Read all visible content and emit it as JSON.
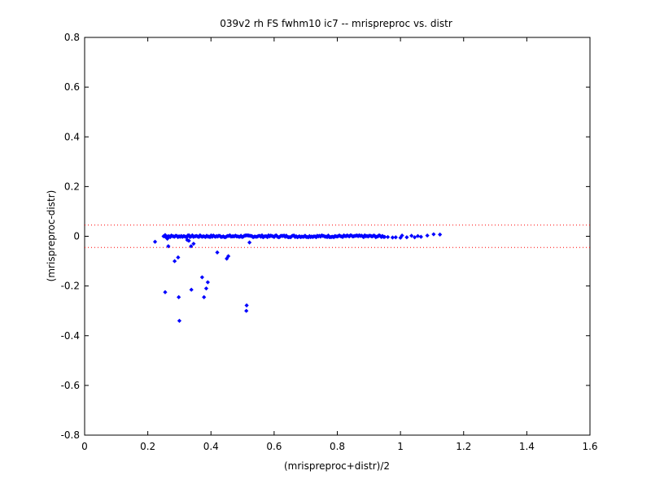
{
  "chart_data": {
    "type": "scatter",
    "title": "039v2 rh FS fwhm10 ic7 -- mrispreproc vs. distr",
    "xlabel": "(mrispreproc+distr)/2",
    "ylabel": "(mrispreproc-distr)",
    "xlim": [
      0,
      1.6
    ],
    "ylim": [
      -0.8,
      0.8
    ],
    "x_ticks": [
      0,
      0.2,
      0.4,
      0.6,
      0.8,
      1.0,
      1.2,
      1.4,
      1.6
    ],
    "x_tick_labels": [
      "0",
      "0.2",
      "0.4",
      "0.6",
      "0.8",
      "1",
      "1.2",
      "1.4",
      "1.6"
    ],
    "y_ticks": [
      -0.8,
      -0.6,
      -0.4,
      -0.2,
      0,
      0.2,
      0.4,
      0.6,
      0.8
    ],
    "y_tick_labels": [
      "-0.8",
      "-0.6",
      "-0.4",
      "-0.2",
      "0",
      "0.2",
      "0.4",
      "0.6",
      "0.8"
    ],
    "grid": false,
    "point_color": "#0000ff",
    "threshold_color": "#ff0000",
    "threshold_lines": [
      0.045,
      -0.045
    ],
    "dense_band": {
      "x_start": 0.25,
      "x_end": 0.95,
      "y": 0.0
    },
    "series": [
      {
        "values": [
          {
            "x": 0.223,
            "y": -0.022
          },
          {
            "x": 0.255,
            "y": 0.005
          },
          {
            "x": 0.262,
            "y": -0.01
          },
          {
            "x": 0.265,
            "y": -0.04
          },
          {
            "x": 0.255,
            "y": -0.225
          },
          {
            "x": 0.285,
            "y": -0.1
          },
          {
            "x": 0.296,
            "y": -0.085
          },
          {
            "x": 0.298,
            "y": -0.245
          },
          {
            "x": 0.3,
            "y": -0.34
          },
          {
            "x": 0.325,
            "y": -0.015
          },
          {
            "x": 0.33,
            "y": -0.018
          },
          {
            "x": 0.337,
            "y": -0.04
          },
          {
            "x": 0.338,
            "y": -0.215
          },
          {
            "x": 0.345,
            "y": -0.03
          },
          {
            "x": 0.372,
            "y": -0.165
          },
          {
            "x": 0.378,
            "y": -0.245
          },
          {
            "x": 0.385,
            "y": -0.21
          },
          {
            "x": 0.39,
            "y": -0.185
          },
          {
            "x": 0.42,
            "y": -0.065
          },
          {
            "x": 0.45,
            "y": -0.09
          },
          {
            "x": 0.455,
            "y": -0.08
          },
          {
            "x": 0.512,
            "y": -0.3
          },
          {
            "x": 0.513,
            "y": -0.278
          },
          {
            "x": 0.522,
            "y": -0.025
          },
          {
            "x": 0.96,
            "y": -0.003
          },
          {
            "x": 0.975,
            "y": -0.005
          },
          {
            "x": 0.985,
            "y": -0.004
          },
          {
            "x": 1.0,
            "y": -0.006
          },
          {
            "x": 1.005,
            "y": 0.003
          },
          {
            "x": 1.02,
            "y": -0.004
          },
          {
            "x": 1.035,
            "y": 0.002
          },
          {
            "x": 1.045,
            "y": -0.004
          },
          {
            "x": 1.055,
            "y": 0.001
          },
          {
            "x": 1.065,
            "y": -0.002
          },
          {
            "x": 1.085,
            "y": 0.003
          },
          {
            "x": 1.105,
            "y": 0.008
          },
          {
            "x": 1.125,
            "y": 0.007
          }
        ]
      }
    ]
  }
}
